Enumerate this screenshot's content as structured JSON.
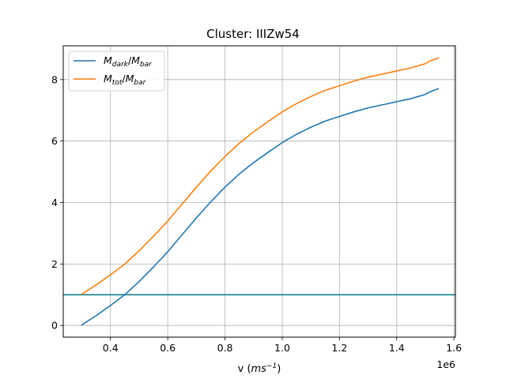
{
  "chart_data": {
    "type": "line",
    "title": "Cluster: IIIZw54",
    "xlabel": {
      "prefix": "v (",
      "italic": "ms",
      "sup": "−1",
      "suffix": ")"
    },
    "x_multiplier": "1e6",
    "xlim": [
      0.235,
      1.605
    ],
    "ylim": [
      -0.38,
      9.1
    ],
    "x_ticks": [
      0.4,
      0.6,
      0.8,
      1.0,
      1.2,
      1.4,
      1.6
    ],
    "x_tick_labels": [
      "0.4",
      "0.6",
      "0.8",
      "1.0",
      "1.2",
      "1.4",
      "1.6"
    ],
    "y_ticks": [
      0,
      2,
      4,
      6,
      8
    ],
    "y_tick_labels": [
      "0",
      "2",
      "4",
      "6",
      "8"
    ],
    "grid": true,
    "legend_position": "upper-left",
    "series": [
      {
        "name": "M_dark/M_bar",
        "legend": {
          "base1": "M",
          "sub1": "dark",
          "sep": "/",
          "base2": "M",
          "sub2": "bar"
        },
        "color": "#1f77b4",
        "x": [
          0.3,
          0.35,
          0.4,
          0.45,
          0.5,
          0.55,
          0.6,
          0.65,
          0.7,
          0.75,
          0.8,
          0.85,
          0.9,
          0.95,
          1.0,
          1.05,
          1.1,
          1.15,
          1.2,
          1.25,
          1.3,
          1.35,
          1.4,
          1.45,
          1.5,
          1.52,
          1.545
        ],
        "y": [
          0.02,
          0.32,
          0.65,
          1.0,
          1.43,
          1.9,
          2.4,
          2.95,
          3.5,
          4.02,
          4.5,
          4.93,
          5.3,
          5.63,
          5.95,
          6.22,
          6.45,
          6.65,
          6.8,
          6.95,
          7.08,
          7.18,
          7.28,
          7.38,
          7.52,
          7.62,
          7.7
        ]
      },
      {
        "name": "M_tot/M_bar",
        "legend": {
          "base1": "M",
          "sub1": "tot",
          "sep": "/",
          "base2": "M",
          "sub2": "bar"
        },
        "color": "#ff7f0e",
        "x": [
          0.3,
          0.35,
          0.4,
          0.45,
          0.5,
          0.55,
          0.6,
          0.65,
          0.7,
          0.75,
          0.8,
          0.85,
          0.9,
          0.95,
          1.0,
          1.05,
          1.1,
          1.15,
          1.2,
          1.25,
          1.3,
          1.35,
          1.4,
          1.45,
          1.5,
          1.52,
          1.545
        ],
        "y": [
          1.02,
          1.32,
          1.65,
          2.0,
          2.43,
          2.9,
          3.4,
          3.95,
          4.5,
          5.02,
          5.5,
          5.93,
          6.3,
          6.63,
          6.95,
          7.22,
          7.45,
          7.65,
          7.8,
          7.95,
          8.08,
          8.18,
          8.28,
          8.38,
          8.52,
          8.62,
          8.7
        ]
      },
      {
        "name": "",
        "color": "#137f86",
        "type": "hline",
        "y_value": 1
      }
    ]
  }
}
